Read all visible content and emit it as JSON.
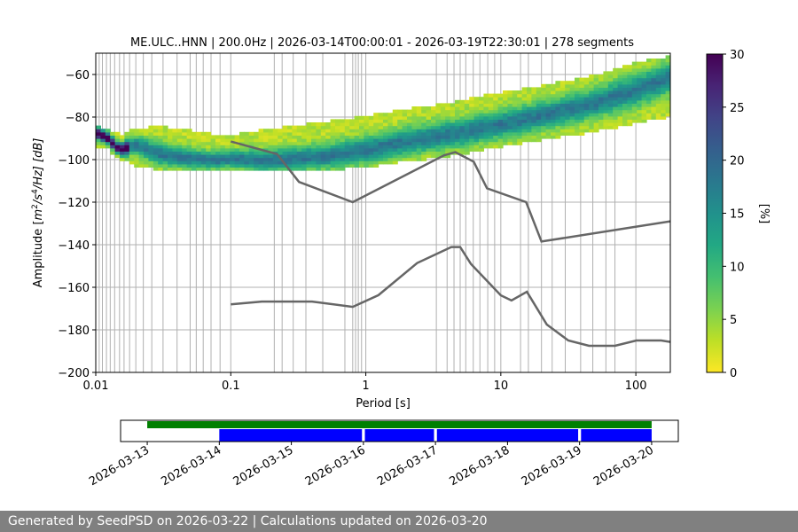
{
  "footer": {
    "text": "Generated by SeedPSD on 2026-03-22 | Calculations updated on 2026-03-20"
  },
  "chart_data": [
    {
      "type": "heatmap",
      "title": "ME.ULC..HNN | 200.0Hz | 2026-03-14T00:00:01 - 2026-03-19T22:30:01 | 278 segments",
      "xlabel": "Period [s]",
      "ylabel_parts": {
        "prefix": "Amplitude [",
        "m": "m",
        "exp2": "2",
        "mid": "/s",
        "exp4": "4",
        "suffix": "/Hz] [dB]"
      },
      "xscale": "log",
      "xlim": [
        0.01,
        180
      ],
      "ylim": [
        -200,
        -50
      ],
      "x_ticks": [
        0.01,
        0.1,
        1,
        10,
        100
      ],
      "x_tick_labels": [
        "0.01",
        "0.1",
        "1",
        "10",
        "100"
      ],
      "y_ticks": [
        -200,
        -180,
        -160,
        -140,
        -120,
        -100,
        -80,
        -60
      ],
      "y_tick_labels": [
        "−200",
        "−180",
        "−160",
        "−140",
        "−120",
        "−100",
        "−80",
        "−60"
      ],
      "grid": true,
      "vertical_gridlines_periods": [
        0.005,
        0.0055,
        0.0062,
        0.007,
        0.0083,
        0.01,
        0.0106,
        0.0112,
        0.012,
        0.0128,
        0.0138,
        0.015,
        0.0162,
        0.0178,
        0.0198,
        0.0225,
        0.026,
        0.0315,
        0.04,
        0.05,
        0.0555,
        0.0625,
        0.0714,
        0.0833,
        0.1,
        0.21,
        0.24,
        0.29,
        0.36,
        0.48,
        0.7,
        0.8,
        0.84,
        0.88,
        0.93,
        1.0,
        3.33,
        4.0,
        4.5,
        5.0,
        5.5,
        6.25,
        7.0,
        8.0,
        9.0,
        10.0,
        14.0,
        16.0,
        20.0,
        24.0,
        30.0,
        39.0,
        48.0,
        60.0,
        70.0,
        100.0
      ],
      "colorbar": {
        "label": "[%]",
        "min": 0,
        "max": 30,
        "ticks": [
          0,
          5,
          10,
          15,
          20,
          25,
          30
        ],
        "colormap": "viridis_r"
      },
      "psd_band": {
        "period": [
          0.01,
          0.012,
          0.015,
          0.02,
          0.03,
          0.05,
          0.08,
          0.1,
          0.2,
          0.5,
          1,
          2,
          5,
          10,
          20,
          50,
          100,
          180
        ],
        "low": [
          -93,
          -94,
          -99,
          -102,
          -104,
          -104,
          -104,
          -104,
          -105,
          -104,
          -103,
          -100,
          -97,
          -93,
          -90,
          -86,
          -82,
          -79
        ],
        "high": [
          -85,
          -86,
          -89,
          -86,
          -85,
          -87,
          -89,
          -89,
          -86,
          -83,
          -80,
          -77,
          -73,
          -69,
          -66,
          -61,
          -55,
          -52
        ],
        "mode": [
          -88,
          -90,
          -96,
          -94,
          -98,
          -100,
          -101,
          -100,
          -101,
          -99,
          -96,
          -92,
          -88,
          -84,
          -80,
          -74,
          -68,
          -62
        ]
      },
      "noise_models": {
        "high": {
          "period": [
            0.1,
            0.22,
            0.32,
            0.8,
            3.8,
            4.6,
            6.3,
            7.9,
            15.4,
            20,
            180
          ],
          "amplitude": [
            -91.5,
            -97.4,
            -110.5,
            -120,
            -98,
            -96.5,
            -101,
            -113.5,
            -120,
            -138.5,
            -129
          ]
        },
        "low": {
          "period": [
            0.1,
            0.17,
            0.4,
            0.8,
            1.24,
            2.4,
            4.3,
            5.0,
            6.0,
            10.0,
            12.0,
            15.6,
            21.9,
            31.6,
            45.0,
            70.0,
            101.0,
            154.0,
            180
          ],
          "amplitude": [
            -168,
            -166.7,
            -166.7,
            -169.2,
            -163.7,
            -148.6,
            -141.1,
            -141.1,
            -149.0,
            -163.8,
            -166.2,
            -162.1,
            -177.5,
            -185.0,
            -187.5,
            -187.5,
            -185.0,
            -185.0,
            -185.7
          ]
        }
      }
    },
    {
      "type": "timeline",
      "x_tick_labels": [
        "2026-03-13",
        "2026-03-14",
        "2026-03-15",
        "2026-03-16",
        "2026-03-17",
        "2026-03-18",
        "2026-03-19",
        "2026-03-20"
      ],
      "xlim_days": [
        12.63,
        20.37
      ],
      "available_data": {
        "start_day": 13.0,
        "end_day": 20.0,
        "color": "#008000"
      },
      "used_segments": {
        "color": "#0000ff",
        "segments": [
          [
            14.0,
            15.98
          ],
          [
            16.02,
            16.98
          ],
          [
            17.02,
            18.98
          ],
          [
            19.02,
            20.0
          ]
        ]
      }
    }
  ]
}
